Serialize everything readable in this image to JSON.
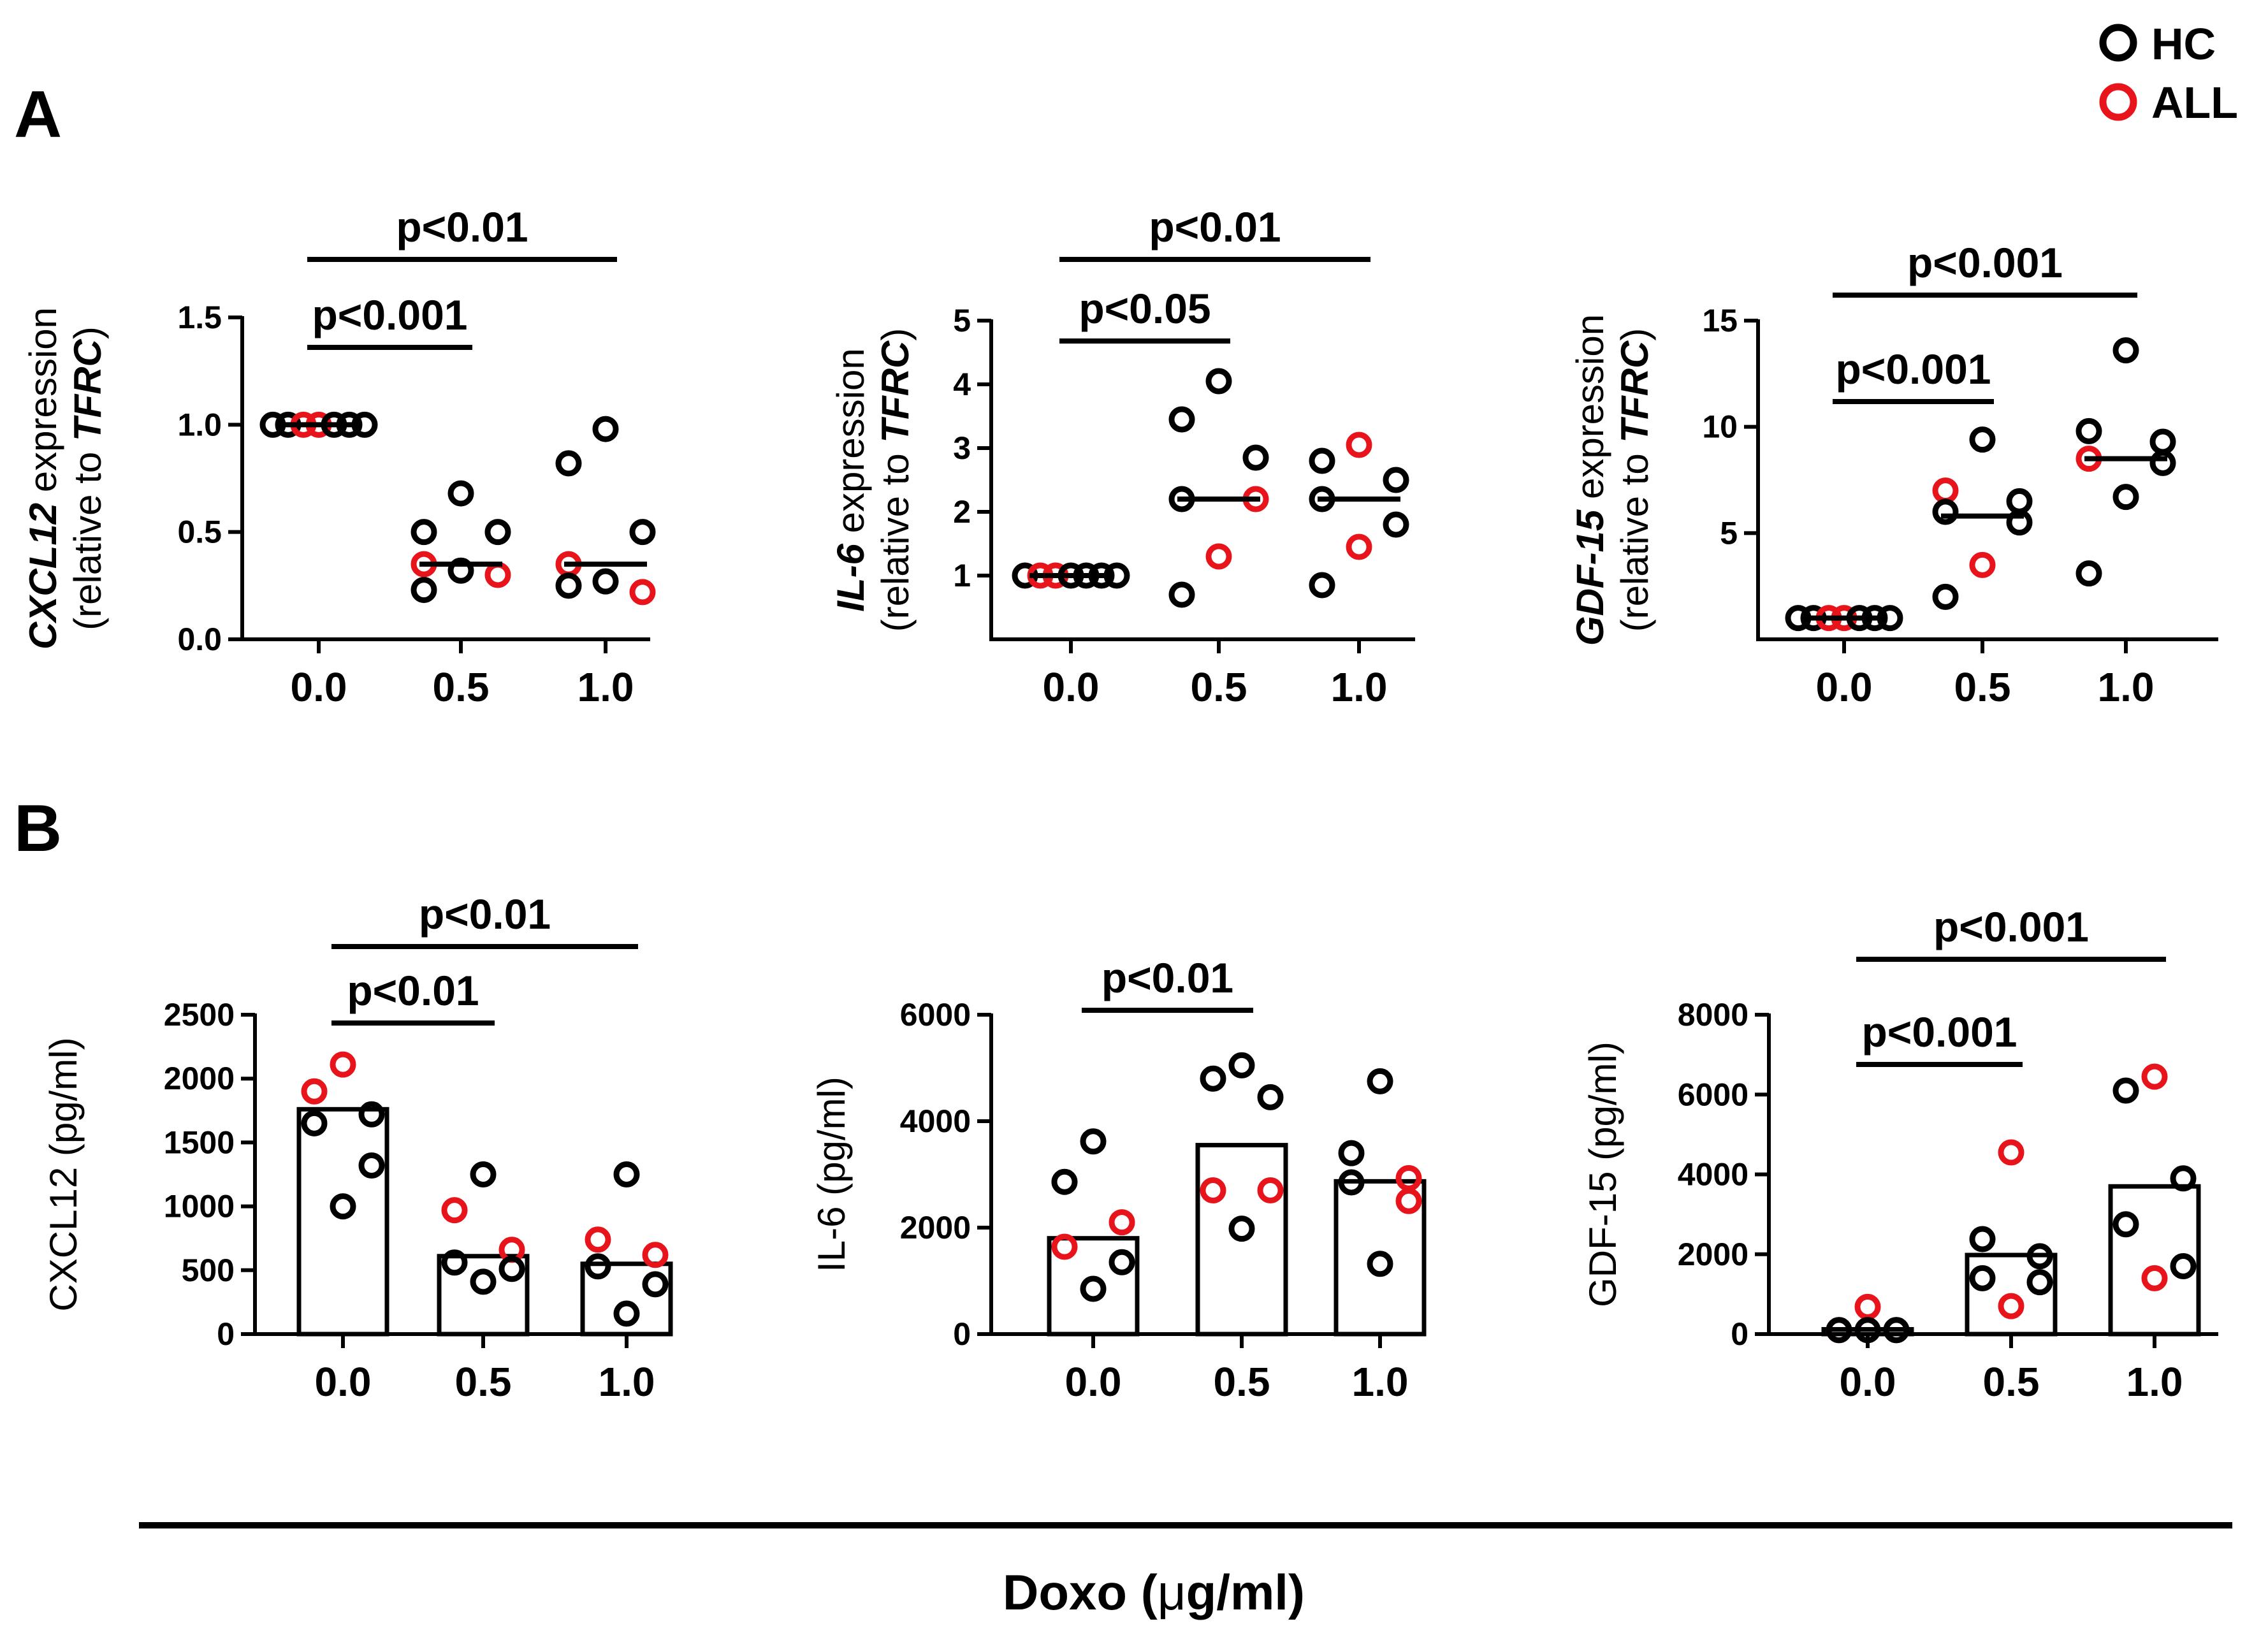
{
  "figure": {
    "panel_a_label": "A",
    "panel_b_label": "B",
    "legend": [
      {
        "label": "HC",
        "color": "#000000"
      },
      {
        "label": "ALL",
        "color": "#e8141b"
      }
    ],
    "x_axis_label_prefix": "Doxo (",
    "x_axis_label_mu": "μ",
    "x_axis_label_suffix": "g/ml)",
    "colors": {
      "hc": "#000000",
      "all": "#e8141b",
      "axis": "#000000"
    }
  },
  "chart_data": [
    {
      "id": "a1",
      "type": "scatter",
      "ylabel_gene": "CXCL12",
      "ylabel_line1_rest": " expression",
      "ylabel_line2_prefix": "(relative to ",
      "ylabel_line2_gene": "TFRC",
      "ylabel_line2_suffix": ")",
      "categories": [
        "0.0",
        "0.5",
        "1.0"
      ],
      "ylim": [
        0,
        1.5
      ],
      "yticks": [
        0.0,
        0.5,
        1.0,
        1.5
      ],
      "ytick_labels": [
        "0.0",
        "0.5",
        "1.0",
        "1.5"
      ],
      "medians": [
        1.0,
        0.35,
        0.35
      ],
      "points": [
        [
          {
            "y": 1.0,
            "g": "HC"
          },
          {
            "y": 1.0,
            "g": "HC"
          },
          {
            "y": 1.0,
            "g": "ALL"
          },
          {
            "y": 1.0,
            "g": "ALL"
          },
          {
            "y": 1.0,
            "g": "HC"
          },
          {
            "y": 1.0,
            "g": "HC"
          },
          {
            "y": 1.0,
            "g": "HC"
          }
        ],
        [
          {
            "y": 0.68,
            "g": "HC"
          },
          {
            "y": 0.5,
            "g": "HC"
          },
          {
            "y": 0.5,
            "g": "HC"
          },
          {
            "y": 0.35,
            "g": "ALL"
          },
          {
            "y": 0.3,
            "g": "ALL"
          },
          {
            "y": 0.32,
            "g": "HC"
          },
          {
            "y": 0.23,
            "g": "HC"
          }
        ],
        [
          {
            "y": 0.98,
            "g": "HC"
          },
          {
            "y": 0.82,
            "g": "HC"
          },
          {
            "y": 0.5,
            "g": "HC"
          },
          {
            "y": 0.35,
            "g": "ALL"
          },
          {
            "y": 0.22,
            "g": "ALL"
          },
          {
            "y": 0.27,
            "g": "HC"
          },
          {
            "y": 0.25,
            "g": "HC"
          }
        ]
      ],
      "comparisons": [
        {
          "from": 0,
          "to": 1,
          "label": "p<0.001"
        },
        {
          "from": 0,
          "to": 2,
          "label": "p<0.01"
        }
      ]
    },
    {
      "id": "a2",
      "type": "scatter",
      "ylabel_gene": "IL-6",
      "ylabel_line1_rest": " expression",
      "ylabel_line2_prefix": "(relative to ",
      "ylabel_line2_gene": "TFRC",
      "ylabel_line2_suffix": ")",
      "categories": [
        "0.0",
        "0.5",
        "1.0"
      ],
      "ylim": [
        0,
        5
      ],
      "yticks": [
        1,
        2,
        3,
        4,
        5
      ],
      "ytick_labels": [
        "1",
        "2",
        "3",
        "4",
        "5"
      ],
      "medians": [
        1.0,
        2.2,
        2.2
      ],
      "points": [
        [
          {
            "y": 1.0,
            "g": "HC"
          },
          {
            "y": 1.0,
            "g": "ALL"
          },
          {
            "y": 1.0,
            "g": "ALL"
          },
          {
            "y": 1.0,
            "g": "HC"
          },
          {
            "y": 1.0,
            "g": "HC"
          },
          {
            "y": 1.0,
            "g": "HC"
          },
          {
            "y": 1.0,
            "g": "HC"
          }
        ],
        [
          {
            "y": 4.05,
            "g": "HC"
          },
          {
            "y": 3.45,
            "g": "HC"
          },
          {
            "y": 2.85,
            "g": "HC"
          },
          {
            "y": 2.2,
            "g": "HC"
          },
          {
            "y": 2.2,
            "g": "ALL"
          },
          {
            "y": 1.3,
            "g": "ALL"
          },
          {
            "y": 0.7,
            "g": "HC"
          }
        ],
        [
          {
            "y": 3.05,
            "g": "ALL"
          },
          {
            "y": 2.8,
            "g": "HC"
          },
          {
            "y": 2.5,
            "g": "HC"
          },
          {
            "y": 2.2,
            "g": "HC"
          },
          {
            "y": 1.8,
            "g": "HC"
          },
          {
            "y": 1.45,
            "g": "ALL"
          },
          {
            "y": 0.85,
            "g": "HC"
          }
        ]
      ],
      "comparisons": [
        {
          "from": 0,
          "to": 1,
          "label": "p<0.05"
        },
        {
          "from": 0,
          "to": 2,
          "label": "p<0.01"
        }
      ]
    },
    {
      "id": "a3",
      "type": "scatter",
      "ylabel_gene": "GDF-15",
      "ylabel_line1_rest": " expression",
      "ylabel_line2_prefix": "(relative to ",
      "ylabel_line2_gene": "TFRC",
      "ylabel_line2_suffix": ")",
      "categories": [
        "0.0",
        "0.5",
        "1.0"
      ],
      "ylim": [
        0,
        15
      ],
      "yticks": [
        5,
        10,
        15
      ],
      "ytick_labels": [
        "5",
        "10",
        "15"
      ],
      "medians": [
        1.0,
        5.8,
        8.5
      ],
      "points": [
        [
          {
            "y": 1.0,
            "g": "HC"
          },
          {
            "y": 1.0,
            "g": "HC"
          },
          {
            "y": 1.0,
            "g": "ALL"
          },
          {
            "y": 1.0,
            "g": "ALL"
          },
          {
            "y": 1.0,
            "g": "HC"
          },
          {
            "y": 1.0,
            "g": "HC"
          },
          {
            "y": 1.0,
            "g": "HC"
          }
        ],
        [
          {
            "y": 9.4,
            "g": "HC"
          },
          {
            "y": 7.0,
            "g": "ALL"
          },
          {
            "y": 6.5,
            "g": "HC"
          },
          {
            "y": 6.0,
            "g": "HC"
          },
          {
            "y": 5.5,
            "g": "HC"
          },
          {
            "y": 3.5,
            "g": "ALL"
          },
          {
            "y": 2.0,
            "g": "HC"
          }
        ],
        [
          {
            "y": 13.6,
            "g": "HC"
          },
          {
            "y": 9.8,
            "g": "HC"
          },
          {
            "y": 9.3,
            "g": "HC"
          },
          {
            "y": 8.5,
            "g": "ALL"
          },
          {
            "y": 8.3,
            "g": "HC"
          },
          {
            "y": 6.7,
            "g": "HC"
          },
          {
            "y": 3.1,
            "g": "HC"
          }
        ]
      ],
      "comparisons": [
        {
          "from": 0,
          "to": 1,
          "label": "p<0.001"
        },
        {
          "from": 0,
          "to": 2,
          "label": "p<0.001"
        }
      ]
    },
    {
      "id": "b1",
      "type": "bar",
      "ylabel": "CXCL12 (pg/ml)",
      "categories": [
        "0.0",
        "0.5",
        "1.0"
      ],
      "ylim": [
        0,
        2500
      ],
      "yticks": [
        0,
        500,
        1000,
        1500,
        2000,
        2500
      ],
      "ytick_labels": [
        "0",
        "500",
        "1000",
        "1500",
        "2000",
        "2500"
      ],
      "values": [
        1760,
        610,
        550
      ],
      "points": [
        [
          {
            "y": 2110,
            "g": "ALL"
          },
          {
            "y": 1900,
            "g": "ALL"
          },
          {
            "y": 1720,
            "g": "HC"
          },
          {
            "y": 1650,
            "g": "HC"
          },
          {
            "y": 1320,
            "g": "HC"
          },
          {
            "y": 1000,
            "g": "HC"
          }
        ],
        [
          {
            "y": 1250,
            "g": "HC"
          },
          {
            "y": 970,
            "g": "ALL"
          },
          {
            "y": 660,
            "g": "ALL"
          },
          {
            "y": 560,
            "g": "HC"
          },
          {
            "y": 510,
            "g": "HC"
          },
          {
            "y": 410,
            "g": "HC"
          }
        ],
        [
          {
            "y": 1250,
            "g": "HC"
          },
          {
            "y": 740,
            "g": "ALL"
          },
          {
            "y": 620,
            "g": "ALL"
          },
          {
            "y": 530,
            "g": "HC"
          },
          {
            "y": 390,
            "g": "HC"
          },
          {
            "y": 160,
            "g": "HC"
          }
        ]
      ],
      "comparisons": [
        {
          "from": 0,
          "to": 1,
          "label": "p<0.01"
        },
        {
          "from": 0,
          "to": 2,
          "label": "p<0.01"
        }
      ]
    },
    {
      "id": "b2",
      "type": "bar",
      "ylabel": "IL-6 (pg/ml)",
      "categories": [
        "0.0",
        "0.5",
        "1.0"
      ],
      "ylim": [
        0,
        6000
      ],
      "yticks": [
        0,
        2000,
        4000,
        6000
      ],
      "ytick_labels": [
        "0",
        "2000",
        "4000",
        "6000"
      ],
      "values": [
        1800,
        3550,
        2870
      ],
      "points": [
        [
          {
            "y": 3620,
            "g": "HC"
          },
          {
            "y": 2860,
            "g": "HC"
          },
          {
            "y": 2100,
            "g": "ALL"
          },
          {
            "y": 1640,
            "g": "ALL"
          },
          {
            "y": 1350,
            "g": "HC"
          },
          {
            "y": 850,
            "g": "HC"
          }
        ],
        [
          {
            "y": 5050,
            "g": "HC"
          },
          {
            "y": 4800,
            "g": "HC"
          },
          {
            "y": 4450,
            "g": "HC"
          },
          {
            "y": 2700,
            "g": "ALL"
          },
          {
            "y": 2700,
            "g": "ALL"
          },
          {
            "y": 1980,
            "g": "HC"
          }
        ],
        [
          {
            "y": 4750,
            "g": "HC"
          },
          {
            "y": 3400,
            "g": "HC"
          },
          {
            "y": 2930,
            "g": "ALL"
          },
          {
            "y": 2850,
            "g": "HC"
          },
          {
            "y": 2500,
            "g": "ALL"
          },
          {
            "y": 1320,
            "g": "HC"
          }
        ]
      ],
      "comparisons": [
        {
          "from": 0,
          "to": 1,
          "label": "p<0.01"
        }
      ]
    },
    {
      "id": "b3",
      "type": "bar",
      "ylabel": "GDF-15 (pg/ml)",
      "categories": [
        "0.0",
        "0.5",
        "1.0"
      ],
      "ylim": [
        0,
        8000
      ],
      "yticks": [
        0,
        2000,
        4000,
        6000,
        8000
      ],
      "ytick_labels": [
        "0",
        "2000",
        "4000",
        "6000",
        "8000"
      ],
      "values": [
        120,
        1980,
        3700
      ],
      "points": [
        [
          {
            "y": 680,
            "g": "ALL"
          },
          {
            "y": 100,
            "g": "ALL"
          },
          {
            "y": 100,
            "g": "HC"
          },
          {
            "y": 100,
            "g": "HC"
          },
          {
            "y": 100,
            "g": "HC"
          },
          {
            "y": 100,
            "g": "HC"
          }
        ],
        [
          {
            "y": 4550,
            "g": "ALL"
          },
          {
            "y": 2380,
            "g": "HC"
          },
          {
            "y": 1950,
            "g": "HC"
          },
          {
            "y": 1400,
            "g": "HC"
          },
          {
            "y": 1300,
            "g": "HC"
          },
          {
            "y": 700,
            "g": "ALL"
          }
        ],
        [
          {
            "y": 6450,
            "g": "ALL"
          },
          {
            "y": 6100,
            "g": "HC"
          },
          {
            "y": 3900,
            "g": "HC"
          },
          {
            "y": 2750,
            "g": "HC"
          },
          {
            "y": 1700,
            "g": "HC"
          },
          {
            "y": 1400,
            "g": "ALL"
          }
        ]
      ],
      "comparisons": [
        {
          "from": 0,
          "to": 1,
          "label": "p<0.001"
        },
        {
          "from": 0,
          "to": 2,
          "label": "p<0.001"
        }
      ]
    }
  ]
}
